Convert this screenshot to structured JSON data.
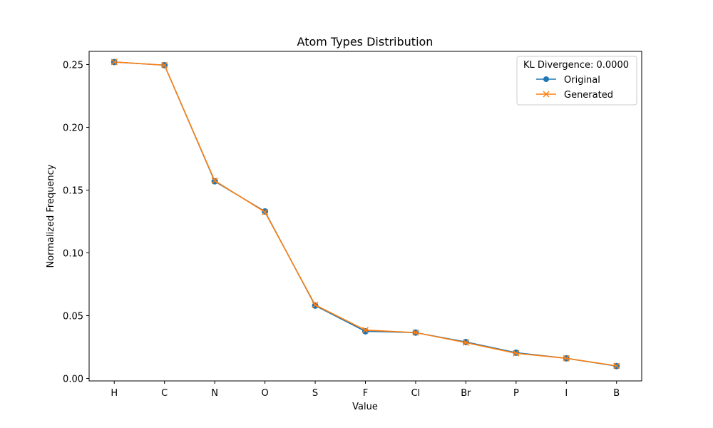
{
  "chart_data": {
    "type": "line",
    "title": "Atom Types Distribution",
    "xlabel": "Value",
    "ylabel": "Normalized Frequency",
    "categories": [
      "H",
      "C",
      "N",
      "O",
      "S",
      "F",
      "Cl",
      "Br",
      "P",
      "I",
      "B"
    ],
    "ylim": [
      -0.002,
      0.2605
    ],
    "yticks": [
      0.0,
      0.05,
      0.1,
      0.15,
      0.2,
      0.25
    ],
    "ytick_labels": [
      "0.00",
      "0.05",
      "0.10",
      "0.15",
      "0.20",
      "0.25"
    ],
    "grid": false,
    "legend": {
      "title": "KL Divergence: 0.0000",
      "placement": "top-right"
    },
    "series": [
      {
        "name": "Original",
        "color": "#1f77b4",
        "marker": "circle",
        "values": [
          0.252,
          0.2495,
          0.157,
          0.133,
          0.058,
          0.0375,
          0.0365,
          0.029,
          0.0205,
          0.016,
          0.0098
        ]
      },
      {
        "name": "Generated",
        "color": "#ff7f0e",
        "marker": "x",
        "values": [
          0.252,
          0.2495,
          0.1575,
          0.1325,
          0.0585,
          0.0385,
          0.0365,
          0.0285,
          0.02,
          0.016,
          0.01
        ]
      }
    ]
  }
}
